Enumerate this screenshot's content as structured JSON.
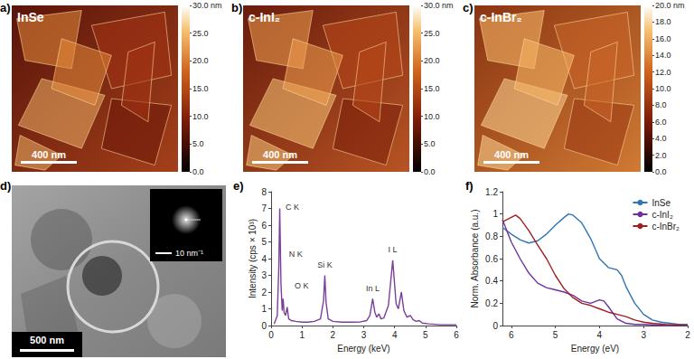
{
  "images": [
    {
      "panel_label": "a)",
      "title": "InSe",
      "scale_bar": "400 nm",
      "colorbar": {
        "lim": [
          0,
          30
        ],
        "ticks": [
          {
            "value": 0,
            "label": "0.0"
          },
          {
            "value": 5,
            "label": "5.0"
          },
          {
            "value": 10,
            "label": "10.0"
          },
          {
            "value": 15,
            "label": "15.0"
          },
          {
            "value": 20,
            "label": "20.0"
          },
          {
            "value": 25,
            "label": "25.0"
          },
          {
            "value": 30,
            "label": "30.0 nm"
          }
        ]
      }
    },
    {
      "panel_label": "b)",
      "title": "c-InI₂",
      "scale_bar": "400 nm",
      "colorbar": {
        "lim": [
          0,
          30
        ],
        "ticks": [
          {
            "value": 0,
            "label": "0.0"
          },
          {
            "value": 5,
            "label": "5.0"
          },
          {
            "value": 10,
            "label": "10.0"
          },
          {
            "value": 15,
            "label": "15.0"
          },
          {
            "value": 20,
            "label": "20.0"
          },
          {
            "value": 25,
            "label": "25.0"
          },
          {
            "value": 30,
            "label": "30.0 nm"
          }
        ]
      }
    },
    {
      "panel_label": "c)",
      "title": "c-InBr₂",
      "scale_bar": "400 nm",
      "colorbar": {
        "lim": [
          0,
          20
        ],
        "ticks": [
          {
            "value": 0,
            "label": "0.0"
          },
          {
            "value": 2,
            "label": "2.0"
          },
          {
            "value": 4,
            "label": "4.0"
          },
          {
            "value": 6,
            "label": "6.0"
          },
          {
            "value": 8,
            "label": "8.0"
          },
          {
            "value": 10,
            "label": "10.0"
          },
          {
            "value": 12,
            "label": "12.0"
          },
          {
            "value": 14,
            "label": "14.0"
          },
          {
            "value": 16,
            "label": "16.0"
          },
          {
            "value": 18,
            "label": "18.0"
          },
          {
            "value": 20,
            "label": "20.0 nm"
          }
        ]
      }
    }
  ],
  "tem_image": {
    "panel_label": "d)",
    "scale_bar": "500 nm",
    "inset_scale_bar": "10 nm⁻¹"
  },
  "chart_data": [
    {
      "type": "line",
      "panel_label": "e)",
      "x_label": "Energy (keV)",
      "y_label": "Intensity (cps × 10³)",
      "xlim": [
        0,
        6
      ],
      "xticks": [
        0,
        1,
        2,
        3,
        4,
        5,
        6
      ],
      "ylim": [
        0,
        8
      ],
      "yticks": [
        0,
        1,
        2,
        3,
        4,
        5,
        6,
        7,
        8
      ],
      "grid": false,
      "series": [
        {
          "color": "#7b3f99",
          "x": [
            0.1,
            0.2,
            0.25,
            0.28,
            0.32,
            0.36,
            0.39,
            0.42,
            0.47,
            0.52,
            0.57,
            0.65,
            0.8,
            1.0,
            1.2,
            1.4,
            1.6,
            1.7,
            1.74,
            1.78,
            1.85,
            2.0,
            2.3,
            2.6,
            2.9,
            3.1,
            3.2,
            3.29,
            3.36,
            3.42,
            3.49,
            3.56,
            3.65,
            3.8,
            3.94,
            4.05,
            4.12,
            4.22,
            4.3,
            4.4,
            4.51,
            4.6,
            4.7,
            4.8,
            4.9,
            5.1,
            5.5,
            6.0
          ],
          "values": [
            0.1,
            0.6,
            3.5,
            7.0,
            2.5,
            0.9,
            1.6,
            0.8,
            0.6,
            1.1,
            0.4,
            0.3,
            0.25,
            0.2,
            0.2,
            0.25,
            0.4,
            1.5,
            3.0,
            1.4,
            0.4,
            0.25,
            0.2,
            0.2,
            0.22,
            0.3,
            0.6,
            1.6,
            0.8,
            0.5,
            0.7,
            0.4,
            0.45,
            1.2,
            3.9,
            1.3,
            1.0,
            2.0,
            0.9,
            0.5,
            0.6,
            0.35,
            0.25,
            0.3,
            0.15,
            0.1,
            0.05,
            0.05
          ]
        }
      ],
      "annotations": [
        {
          "text": "C K",
          "x": 0.28,
          "y": 7.0
        },
        {
          "text": "N K",
          "x": 0.39,
          "y": 1.6
        },
        {
          "text": "O K",
          "x": 0.52,
          "y": 1.1
        },
        {
          "text": "Si K",
          "x": 1.74,
          "y": 3.0
        },
        {
          "text": "In L",
          "x": 3.29,
          "y": 1.6
        },
        {
          "text": "I L",
          "x": 3.94,
          "y": 3.9
        }
      ]
    },
    {
      "type": "line",
      "panel_label": "f)",
      "x_label": "Energy (eV)",
      "y_label": "Norm. Absorbance (a.u.)",
      "xlim": [
        6.2,
        2
      ],
      "xticks": [
        6,
        5,
        4,
        3,
        2
      ],
      "ylim": [
        0,
        1.2
      ],
      "yticks": [
        0,
        0.2,
        0.4,
        0.6,
        0.8,
        1,
        1.2
      ],
      "grid": false,
      "legend": "upper right",
      "series": [
        {
          "name": "InSe",
          "color": "#2e75b6",
          "x": [
            6.2,
            6.0,
            5.8,
            5.6,
            5.4,
            5.2,
            5.0,
            4.8,
            4.7,
            4.6,
            4.4,
            4.2,
            4.0,
            3.8,
            3.6,
            3.5,
            3.4,
            3.2,
            3.0,
            2.8,
            2.6,
            2.4,
            2.2,
            2.0
          ],
          "values": [
            0.88,
            0.82,
            0.77,
            0.74,
            0.76,
            0.82,
            0.9,
            0.97,
            1.0,
            0.99,
            0.92,
            0.78,
            0.6,
            0.52,
            0.5,
            0.45,
            0.35,
            0.2,
            0.1,
            0.05,
            0.03,
            0.02,
            0.01,
            0.01
          ]
        },
        {
          "name": "c-InI₂",
          "color": "#7030a0",
          "x": [
            6.2,
            6.0,
            5.8,
            5.6,
            5.4,
            5.2,
            5.0,
            4.8,
            4.6,
            4.4,
            4.2,
            4.0,
            3.9,
            3.8,
            3.6,
            3.4,
            3.2,
            3.0,
            2.5,
            2.0
          ],
          "values": [
            0.95,
            0.75,
            0.6,
            0.47,
            0.38,
            0.34,
            0.32,
            0.3,
            0.27,
            0.22,
            0.2,
            0.23,
            0.22,
            0.17,
            0.06,
            0.02,
            0.01,
            0.01,
            0.0,
            0.0
          ]
        },
        {
          "name": "c-InBr₂",
          "color": "#a02020",
          "x": [
            6.2,
            6.0,
            5.9,
            5.8,
            5.6,
            5.4,
            5.2,
            5.0,
            4.8,
            4.6,
            4.4,
            4.2,
            4.0,
            3.8,
            3.6,
            3.4,
            3.2,
            3.0,
            2.8,
            2.5,
            2.0
          ],
          "values": [
            0.93,
            0.97,
            0.99,
            0.96,
            0.85,
            0.72,
            0.6,
            0.45,
            0.33,
            0.25,
            0.2,
            0.18,
            0.15,
            0.12,
            0.1,
            0.08,
            0.05,
            0.03,
            0.02,
            0.01,
            0.0
          ]
        }
      ]
    }
  ]
}
